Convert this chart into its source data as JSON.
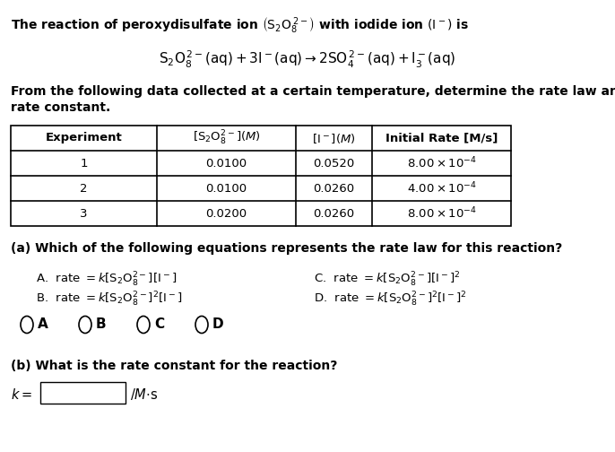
{
  "bg_color": "#ffffff",
  "title": "The reaction of peroxydisulfate ion $\\left(\\mathrm{S_2O_8^{\\,2-}}\\right)$ with iodide ion $\\left(\\mathrm{I^-}\\right)$ is",
  "equation": "$\\mathrm{S_2O_8^{\\,2-}(aq) + 3I^-(aq) \\rightarrow 2SO_4^{\\,2-}(aq) + I_3^-(aq)}$",
  "intro": "From the following data collected at a certain temperature, determine the rate law and calculate the rate constant.",
  "col_headers": [
    "Experiment",
    "$[\\mathrm{S_2O_8^{2-}}](M)$",
    "$[\\mathrm{I^-}](M)$",
    "Initial Rate [M/s]"
  ],
  "rows": [
    [
      "1",
      "0.0100",
      "0.0520",
      "$8.00 \\times 10^{-4}$"
    ],
    [
      "2",
      "0.0100",
      "0.0260",
      "$4.00 \\times 10^{-4}$"
    ],
    [
      "3",
      "0.0200",
      "0.0260",
      "$8.00 \\times 10^{-4}$"
    ]
  ],
  "qa": "(a) Which of the following equations represents the rate law for this reaction?",
  "optA": "A.  rate $= k[\\mathrm{S_2O_8^{2-}}][\\mathrm{I^-}]$",
  "optB": "B.  rate $= k[\\mathrm{S_2O_8^{2-}}]^2[\\mathrm{I^-}]$",
  "optC": "C.  rate $= k[\\mathrm{S_2O_8^{2-}}][\\mathrm{I^-}]^2$",
  "optD": "D.  rate $= k[\\mathrm{S_2O_8^{2-}}]^2[\\mathrm{I^-}]^2$",
  "radio_letters": [
    "A",
    "B",
    "C",
    "D"
  ],
  "qb": "(b) What is the rate constant for the reaction?",
  "k_eq": "$k =$",
  "k_units": "$/M\\cdot$s"
}
